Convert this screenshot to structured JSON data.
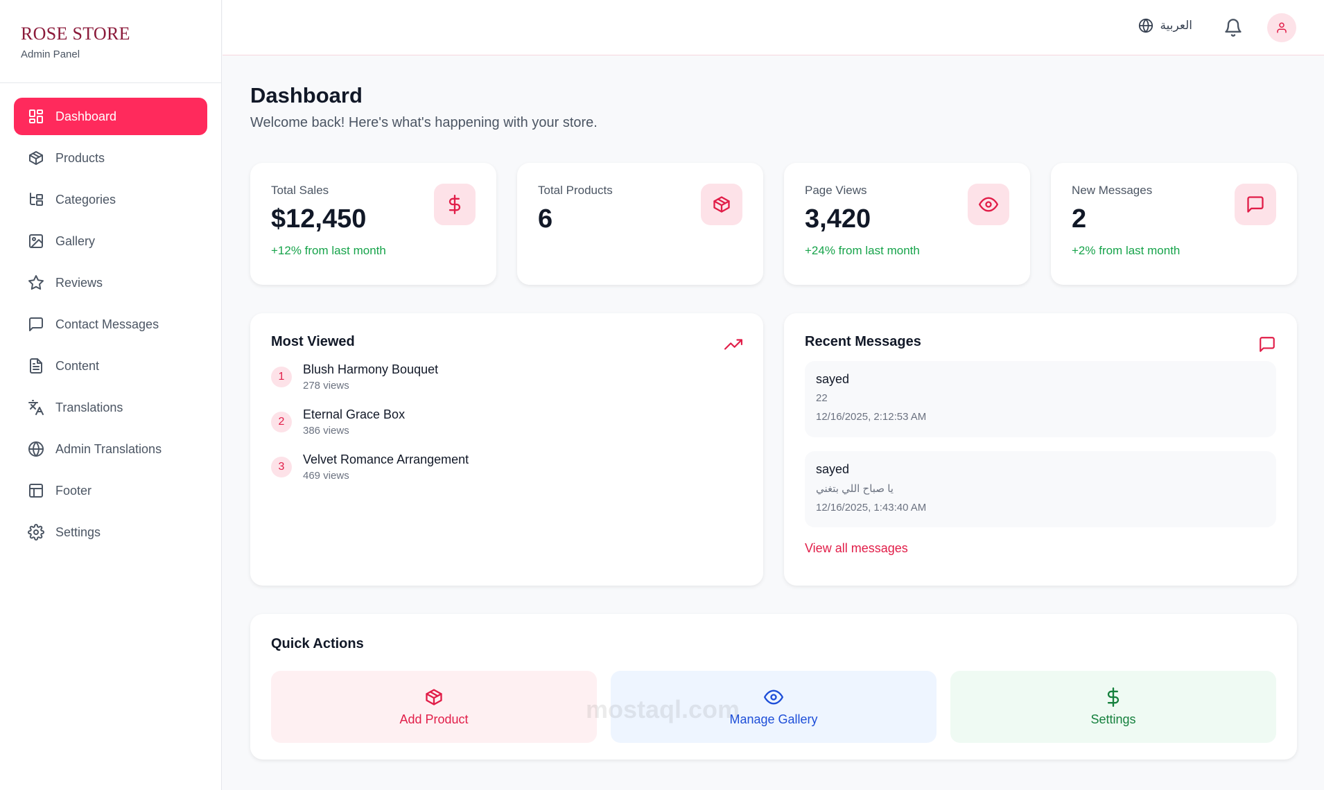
{
  "brand": {
    "title": "ROSE STORE",
    "subtitle": "Admin Panel"
  },
  "sidebar": {
    "items": [
      {
        "label": "Dashboard",
        "icon": "dashboard-icon",
        "active": true
      },
      {
        "label": "Products",
        "icon": "package-icon"
      },
      {
        "label": "Categories",
        "icon": "categories-icon"
      },
      {
        "label": "Gallery",
        "icon": "image-icon"
      },
      {
        "label": "Reviews",
        "icon": "star-icon"
      },
      {
        "label": "Contact Messages",
        "icon": "message-icon"
      },
      {
        "label": "Content",
        "icon": "document-icon"
      },
      {
        "label": "Translations",
        "icon": "translate-icon"
      },
      {
        "label": "Admin Translations",
        "icon": "globe-icon"
      },
      {
        "label": "Footer",
        "icon": "layout-icon"
      },
      {
        "label": "Settings",
        "icon": "gear-icon"
      }
    ]
  },
  "header": {
    "language_label": "العربية"
  },
  "page": {
    "title": "Dashboard",
    "subtitle": "Welcome back! Here's what's happening with your store."
  },
  "stats": [
    {
      "label": "Total Sales",
      "value": "$12,450",
      "change": "+12% from last month",
      "icon": "dollar-icon"
    },
    {
      "label": "Total Products",
      "value": "6",
      "change": "",
      "icon": "package-icon"
    },
    {
      "label": "Page Views",
      "value": "3,420",
      "change": "+24% from last month",
      "icon": "eye-icon"
    },
    {
      "label": "New Messages",
      "value": "2",
      "change": "+2% from last month",
      "icon": "message-icon"
    }
  ],
  "most_viewed": {
    "title": "Most Viewed",
    "items": [
      {
        "rank": "1",
        "name": "Blush Harmony Bouquet",
        "views": "278 views"
      },
      {
        "rank": "2",
        "name": "Eternal Grace Box",
        "views": "386 views"
      },
      {
        "rank": "3",
        "name": "Velvet Romance Arrangement",
        "views": "469 views"
      }
    ]
  },
  "recent_messages": {
    "title": "Recent Messages",
    "items": [
      {
        "name": "sayed",
        "body": "22",
        "time": "12/16/2025, 2:12:53 AM"
      },
      {
        "name": "sayed",
        "body": "يا صباح اللي بتغني",
        "time": "12/16/2025, 1:43:40 AM"
      }
    ],
    "view_all": "View all messages"
  },
  "quick_actions": {
    "title": "Quick Actions",
    "items": [
      {
        "label": "Add Product",
        "icon": "package-icon",
        "color": "#e11d48",
        "bg": "#fef0f2"
      },
      {
        "label": "Manage Gallery",
        "icon": "eye-icon",
        "color": "#1d4ed8",
        "bg": "#eef5ff"
      },
      {
        "label": "Settings",
        "icon": "dollar-icon",
        "color": "#15803d",
        "bg": "#effaf3"
      }
    ]
  },
  "colors": {
    "accent": "#ff2a5c",
    "accent_dark": "#e11d48",
    "positive": "#16a34a",
    "brand": "#8b1a3a"
  },
  "watermark": "mostaql.com"
}
